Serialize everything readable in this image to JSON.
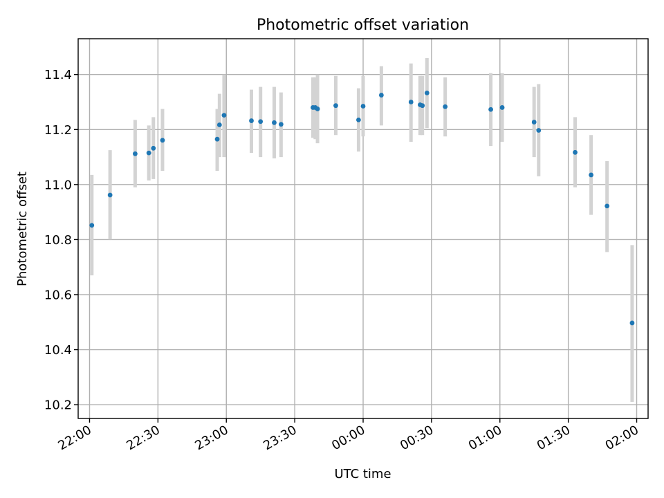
{
  "chart_data": {
    "type": "scatter",
    "title": "Photometric offset variation",
    "xlabel": "UTC time",
    "ylabel": "Photometric offset",
    "x_ticks": [
      "22:00",
      "22:30",
      "23:00",
      "23:30",
      "00:00",
      "00:30",
      "01:00",
      "01:30",
      "02:00"
    ],
    "y_ticks": [
      "10.2",
      "10.4",
      "10.6",
      "10.8",
      "11.0",
      "11.2",
      "11.4"
    ],
    "xlim": [
      "21:55",
      "02:05"
    ],
    "ylim": [
      10.15,
      11.53
    ],
    "grid": true,
    "colors": {
      "points": "#1f77b4",
      "error_bars": "#d3d3d3",
      "grid": "#b0b0b0"
    },
    "series": [
      {
        "points": [
          {
            "x": "22:01",
            "y": 10.852,
            "ymin": 10.67,
            "ymax": 11.035
          },
          {
            "x": "22:09",
            "y": 10.962,
            "ymin": 10.8,
            "ymax": 11.125
          },
          {
            "x": "22:20",
            "y": 11.112,
            "ymin": 10.99,
            "ymax": 11.235
          },
          {
            "x": "22:26",
            "y": 11.115,
            "ymin": 11.015,
            "ymax": 11.215
          },
          {
            "x": "22:28",
            "y": 11.132,
            "ymin": 11.02,
            "ymax": 11.245
          },
          {
            "x": "22:32",
            "y": 11.161,
            "ymin": 11.05,
            "ymax": 11.275
          },
          {
            "x": "22:56",
            "y": 11.165,
            "ymin": 11.05,
            "ymax": 11.275
          },
          {
            "x": "22:57",
            "y": 11.217,
            "ymin": 11.1,
            "ymax": 11.33
          },
          {
            "x": "22:59",
            "y": 11.252,
            "ymin": 11.1,
            "ymax": 11.4
          },
          {
            "x": "23:11",
            "y": 11.232,
            "ymin": 11.115,
            "ymax": 11.345
          },
          {
            "x": "23:15",
            "y": 11.229,
            "ymin": 11.1,
            "ymax": 11.355
          },
          {
            "x": "23:21",
            "y": 11.225,
            "ymin": 11.095,
            "ymax": 11.355
          },
          {
            "x": "23:24",
            "y": 11.219,
            "ymin": 11.1,
            "ymax": 11.335
          },
          {
            "x": "23:38",
            "y": 11.28,
            "ymin": 11.17,
            "ymax": 11.39
          },
          {
            "x": "23:39",
            "y": 11.28,
            "ymin": 11.165,
            "ymax": 11.39
          },
          {
            "x": "23:40",
            "y": 11.275,
            "ymin": 11.15,
            "ymax": 11.4
          },
          {
            "x": "23:48",
            "y": 11.287,
            "ymin": 11.18,
            "ymax": 11.395
          },
          {
            "x": "23:58",
            "y": 11.235,
            "ymin": 11.12,
            "ymax": 11.35
          },
          {
            "x": "00:00",
            "y": 11.285,
            "ymin": 11.175,
            "ymax": 11.395
          },
          {
            "x": "00:08",
            "y": 11.325,
            "ymin": 11.215,
            "ymax": 11.43
          },
          {
            "x": "00:21",
            "y": 11.3,
            "ymin": 11.155,
            "ymax": 11.44
          },
          {
            "x": "00:25",
            "y": 11.29,
            "ymin": 11.18,
            "ymax": 11.395
          },
          {
            "x": "00:26",
            "y": 11.287,
            "ymin": 11.18,
            "ymax": 11.395
          },
          {
            "x": "00:28",
            "y": 11.333,
            "ymin": 11.205,
            "ymax": 11.46
          },
          {
            "x": "00:36",
            "y": 11.283,
            "ymin": 11.175,
            "ymax": 11.39
          },
          {
            "x": "00:56",
            "y": 11.273,
            "ymin": 11.14,
            "ymax": 11.405
          },
          {
            "x": "01:01",
            "y": 11.28,
            "ymin": 11.155,
            "ymax": 11.405
          },
          {
            "x": "01:15",
            "y": 11.227,
            "ymin": 11.1,
            "ymax": 11.355
          },
          {
            "x": "01:17",
            "y": 11.197,
            "ymin": 11.03,
            "ymax": 11.365
          },
          {
            "x": "01:33",
            "y": 11.117,
            "ymin": 10.99,
            "ymax": 11.245
          },
          {
            "x": "01:40",
            "y": 11.035,
            "ymin": 10.89,
            "ymax": 11.18
          },
          {
            "x": "01:47",
            "y": 10.922,
            "ymin": 10.755,
            "ymax": 11.085
          },
          {
            "x": "01:58",
            "y": 10.497,
            "ymin": 10.21,
            "ymax": 10.78
          }
        ]
      }
    ]
  }
}
